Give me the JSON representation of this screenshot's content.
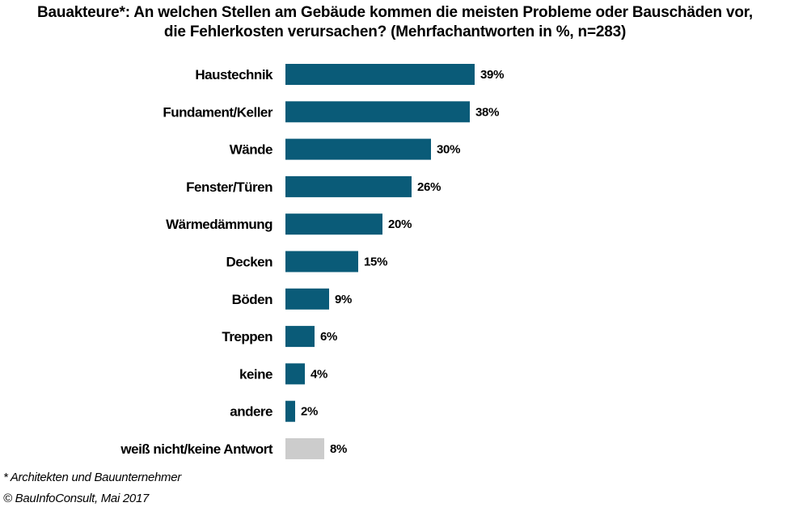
{
  "chart_data": {
    "type": "bar",
    "orientation": "horizontal",
    "title": "Bauakteure*: An welchen Stellen am Gebäude kommen die meisten Probleme oder Bauschäden vor, die Fehlerkosten verursachen? (Mehrfachantworten in %, n=283)",
    "title_lines": [
      "Bauakteure*: An welchen Stellen am Gebäude kommen  die meisten Probleme oder Bauschäden vor,",
      "die Fehlerkosten  verursachen? (Mehrfachantworten  in %, n=283)"
    ],
    "categories": [
      "Haustechnik",
      "Fundament/Keller",
      "Wände",
      "Fenster/Türen",
      "Wärmedämmung",
      "Decken",
      "Böden",
      "Treppen",
      "keine",
      "andere",
      "weiß nicht/keine Antwort"
    ],
    "values": [
      39,
      38,
      30,
      26,
      20,
      15,
      9,
      6,
      4,
      2,
      8
    ],
    "value_labels": [
      "39%",
      "38%",
      "30%",
      "26%",
      "20%",
      "15%",
      "9%",
      "6%",
      "4%",
      "2%",
      "8%"
    ],
    "unit": "%",
    "xlim": [
      0,
      100
    ],
    "grid": false,
    "legend": "none",
    "colors": {
      "primary": "#0a5b78",
      "other": "#cccccc"
    },
    "bar_colors": [
      "primary",
      "primary",
      "primary",
      "primary",
      "primary",
      "primary",
      "primary",
      "primary",
      "primary",
      "primary",
      "other"
    ]
  },
  "footnotes": {
    "note": "* Architekten und Bauunternehmer",
    "source": "© BauInfoConsult, Mai 2017"
  }
}
